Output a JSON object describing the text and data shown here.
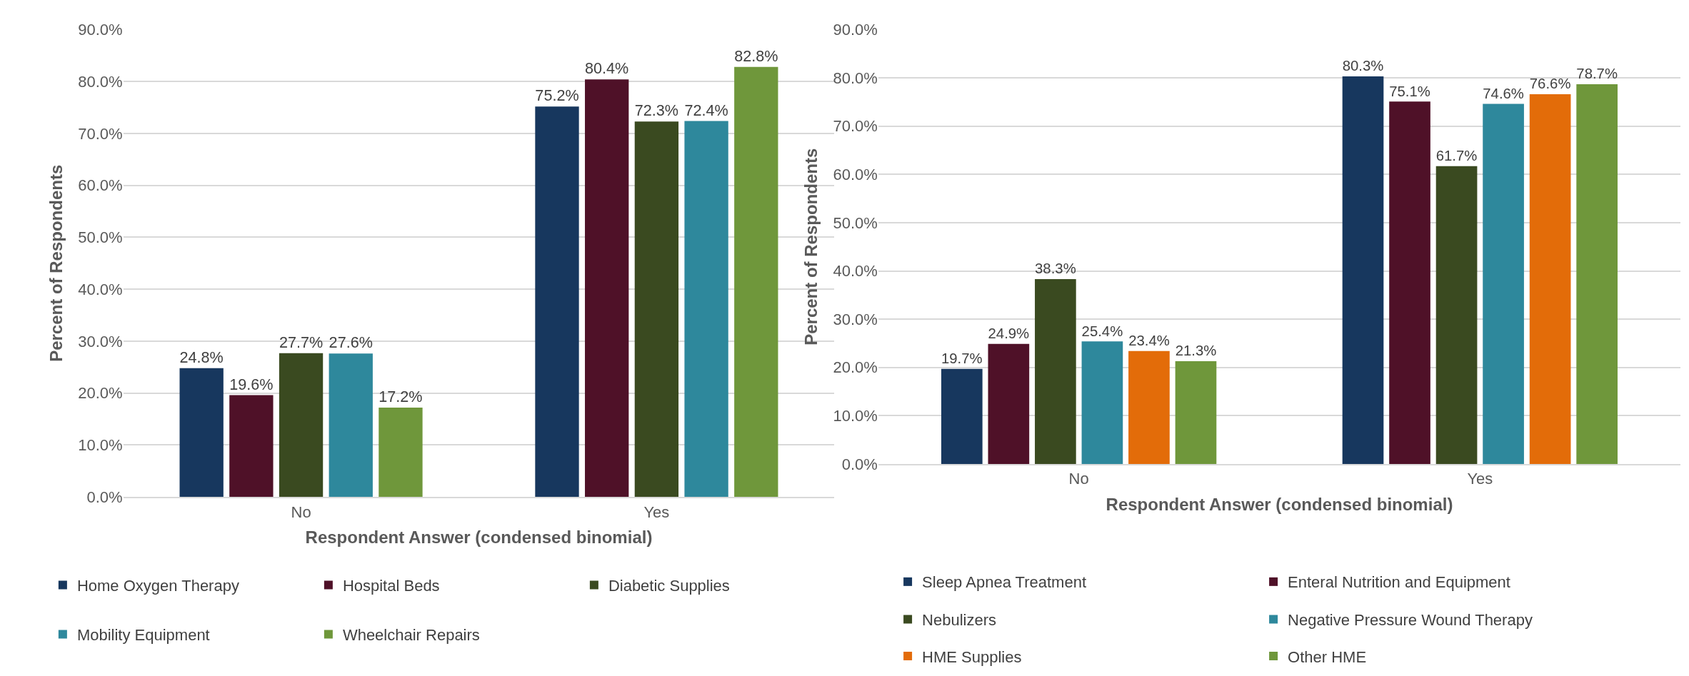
{
  "chart_data": [
    {
      "type": "bar",
      "categories": [
        "No",
        "Yes"
      ],
      "xlabel": "Respondent Answer (condensed binomial)",
      "ylabel": "Percent of Respondents",
      "ylim": [
        0,
        90
      ],
      "yticks": [
        {
          "value": 0,
          "label": "0.0%"
        },
        {
          "value": 10,
          "label": "10.0%"
        },
        {
          "value": 20,
          "label": "20.0%"
        },
        {
          "value": 30,
          "label": "30.0%"
        },
        {
          "value": 40,
          "label": "40.0%"
        },
        {
          "value": 50,
          "label": "50.0%"
        },
        {
          "value": 60,
          "label": "60.0%"
        },
        {
          "value": 70,
          "label": "70.0%"
        },
        {
          "value": 80,
          "label": "80.0%"
        },
        {
          "value": 90,
          "label": "90.0%"
        }
      ],
      "grid": "y",
      "legend": "bottom",
      "series": [
        {
          "name": "Home Oxygen Therapy",
          "color": "#17375e",
          "values": [
            24.8,
            75.2
          ],
          "value_labels": [
            "24.8%",
            "75.2%"
          ]
        },
        {
          "name": "Hospital Beds",
          "color": "#4f1128",
          "values": [
            19.6,
            80.4
          ],
          "value_labels": [
            "19.6%",
            "80.4%"
          ]
        },
        {
          "name": "Diabetic Supplies",
          "color": "#3a4a20",
          "values": [
            27.7,
            72.3
          ],
          "value_labels": [
            "27.7%",
            "72.3%"
          ]
        },
        {
          "name": "Mobility Equipment",
          "color": "#2e889c",
          "values": [
            27.6,
            72.4
          ],
          "value_labels": [
            "27.6%",
            "72.4%"
          ]
        },
        {
          "name": "Wheelchair Repairs",
          "color": "#6f973b",
          "values": [
            17.2,
            82.8
          ],
          "value_labels": [
            "17.2%",
            "82.8%"
          ]
        }
      ]
    },
    {
      "type": "bar",
      "categories": [
        "No",
        "Yes"
      ],
      "xlabel": "Respondent Answer (condensed binomial)",
      "ylabel": "Percent of Respondents",
      "ylim": [
        0,
        90
      ],
      "yticks": [
        {
          "value": 0,
          "label": "0.0%"
        },
        {
          "value": 10,
          "label": "10.0%"
        },
        {
          "value": 20,
          "label": "20.0%"
        },
        {
          "value": 30,
          "label": "30.0%"
        },
        {
          "value": 40,
          "label": "40.0%"
        },
        {
          "value": 50,
          "label": "50.0%"
        },
        {
          "value": 60,
          "label": "60.0%"
        },
        {
          "value": 70,
          "label": "70.0%"
        },
        {
          "value": 80,
          "label": "80.0%"
        },
        {
          "value": 90,
          "label": "90.0%"
        }
      ],
      "grid": "y",
      "legend": "bottom",
      "series": [
        {
          "name": "Sleep Apnea Treatment",
          "color": "#17375e",
          "values": [
            19.7,
            80.3
          ],
          "value_labels": [
            "19.7%",
            "80.3%"
          ]
        },
        {
          "name": "Enteral Nutrition and Equipment",
          "color": "#4f1128",
          "values": [
            24.9,
            75.1
          ],
          "value_labels": [
            "24.9%",
            "75.1%"
          ]
        },
        {
          "name": "Nebulizers",
          "color": "#3a4a20",
          "values": [
            38.3,
            61.7
          ],
          "value_labels": [
            "38.3%",
            "61.7%"
          ]
        },
        {
          "name": "Negative Pressure Wound Therapy",
          "color": "#2e889c",
          "values": [
            25.4,
            74.6
          ],
          "value_labels": [
            "25.4%",
            "74.6%"
          ]
        },
        {
          "name": "HME Supplies",
          "color": "#e36c09",
          "values": [
            23.4,
            76.6
          ],
          "value_labels": [
            "23.4%",
            "76.6%"
          ]
        },
        {
          "name": "Other HME",
          "color": "#6f973b",
          "values": [
            21.3,
            78.7
          ],
          "value_labels": [
            "21.3%",
            "78.7%"
          ]
        }
      ]
    }
  ]
}
